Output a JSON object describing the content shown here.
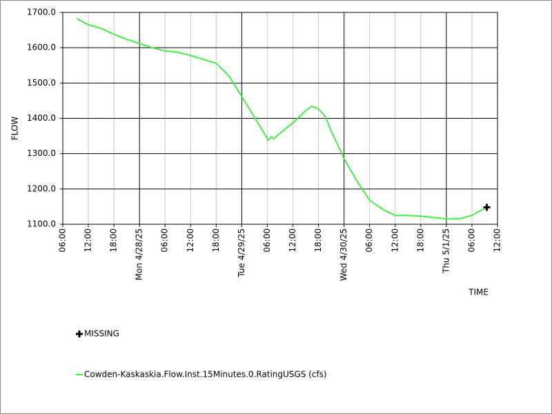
{
  "chart_data": {
    "type": "line",
    "x_label": "TIME",
    "y_label": "FLOW",
    "xlim": [
      "2025-04-27T06:00",
      "2025-05-01T12:00"
    ],
    "xticks": [
      {
        "value": "2025-04-27T06:00",
        "label": "06:00"
      },
      {
        "value": "2025-04-27T12:00",
        "label": "12:00"
      },
      {
        "value": "2025-04-27T18:00",
        "label": "18:00"
      },
      {
        "value": "2025-04-28T00:00",
        "label": "Mon 4/28/25"
      },
      {
        "value": "2025-04-28T06:00",
        "label": "06:00"
      },
      {
        "value": "2025-04-28T12:00",
        "label": "12:00"
      },
      {
        "value": "2025-04-28T18:00",
        "label": "18:00"
      },
      {
        "value": "2025-04-29T00:00",
        "label": "Tue 4/29/25"
      },
      {
        "value": "2025-04-29T06:00",
        "label": "06:00"
      },
      {
        "value": "2025-04-29T12:00",
        "label": "12:00"
      },
      {
        "value": "2025-04-29T18:00",
        "label": "18:00"
      },
      {
        "value": "2025-04-30T00:00",
        "label": "Wed 4/30/25"
      },
      {
        "value": "2025-04-30T06:00",
        "label": "06:00"
      },
      {
        "value": "2025-04-30T12:00",
        "label": "12:00"
      },
      {
        "value": "2025-04-30T18:00",
        "label": "18:00"
      },
      {
        "value": "2025-05-01T00:00",
        "label": "Thu 5/1/25"
      },
      {
        "value": "2025-05-01T06:00",
        "label": "06:00"
      },
      {
        "value": "2025-05-01T12:00",
        "label": "12:00"
      }
    ],
    "ylim": [
      1100,
      1700
    ],
    "yticks": [
      {
        "value": 1100,
        "label": "1100.0"
      },
      {
        "value": 1200,
        "label": "1200.0"
      },
      {
        "value": 1300,
        "label": "1300.0"
      },
      {
        "value": 1400,
        "label": "1400.0"
      },
      {
        "value": 1500,
        "label": "1500.0"
      },
      {
        "value": 1600,
        "label": "1600.0"
      },
      {
        "value": 1700,
        "label": "1700.0"
      }
    ],
    "grid": true,
    "series": [
      {
        "name": "Cowden-Kaskaskia.Flow.Inst.15Minutes.0.RatingUSGS (cfs)",
        "color": "#44ee44",
        "x": [
          "2025-04-27T09:15",
          "2025-04-27T12:00",
          "2025-04-27T15:00",
          "2025-04-27T18:00",
          "2025-04-27T21:00",
          "2025-04-28T00:00",
          "2025-04-28T03:00",
          "2025-04-28T06:00",
          "2025-04-28T09:00",
          "2025-04-28T12:00",
          "2025-04-28T15:00",
          "2025-04-28T18:00",
          "2025-04-28T21:00",
          "2025-04-29T00:00",
          "2025-04-29T03:00",
          "2025-04-29T06:15",
          "2025-04-29T07:00",
          "2025-04-29T07:30",
          "2025-04-29T09:00",
          "2025-04-29T12:00",
          "2025-04-29T15:00",
          "2025-04-29T16:30",
          "2025-04-29T18:00",
          "2025-04-29T19:30",
          "2025-04-29T21:00",
          "2025-04-30T00:00",
          "2025-04-30T03:00",
          "2025-04-30T06:00",
          "2025-04-30T09:00",
          "2025-04-30T12:00",
          "2025-04-30T15:00",
          "2025-04-30T18:00",
          "2025-04-30T21:00",
          "2025-05-01T00:00",
          "2025-05-01T03:00",
          "2025-05-01T06:00",
          "2025-05-01T09:00",
          "2025-05-01T09:30"
        ],
        "values": [
          1683,
          1665,
          1655,
          1638,
          1624,
          1612,
          1600,
          1591,
          1587,
          1578,
          1567,
          1556,
          1520,
          1462,
          1403,
          1338,
          1348,
          1342,
          1358,
          1387,
          1422,
          1434,
          1427,
          1407,
          1364,
          1286,
          1223,
          1168,
          1143,
          1125,
          1125,
          1123,
          1119,
          1115,
          1115,
          1125,
          1145,
          1148
        ]
      },
      {
        "name": "MISSING",
        "color": "#000000",
        "marker": "plus",
        "x": [
          "2025-05-01T09:30"
        ],
        "values": [
          1148
        ]
      }
    ]
  }
}
